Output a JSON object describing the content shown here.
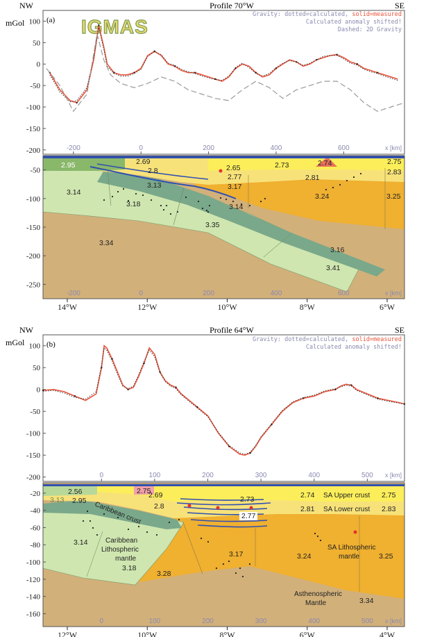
{
  "panels": [
    {
      "label": "(a)",
      "title": "Profile 70°W",
      "left": "NW",
      "right": "SE",
      "unit": "mGol",
      "legend": {
        "line1_a": "Gravity: dotted=calculated, ",
        "line1_b": "solid=measured",
        "line2": "Calculated anomaly shifted!",
        "line3": "Dashed: 2D Gravity"
      },
      "logo": "IGMAS"
    },
    {
      "label": "(b)",
      "title": "Profile 64°W",
      "left": "NW",
      "right": "SE",
      "unit": "mGol",
      "legend": {
        "line1_a": "Gravity: dotted=calculated, ",
        "line1_b": "solid=measured",
        "line2": "Calculated anomaly shifted!"
      }
    }
  ],
  "colors": {
    "measured": "#e8533b",
    "calculated": "#333333",
    "dashed2d": "#999999",
    "mantle_deep": "#d2b07a",
    "lithosphere": "#cfe6b0",
    "slab": "#7aa88a",
    "sa_mantle": "#f0b030",
    "crust": "#f7e27a",
    "upper_crust": "#fbee5a",
    "water": "#3050b0"
  },
  "chart_data": [
    {
      "type": "line",
      "panel": "a-gravity",
      "xlabel": "x [km]",
      "ylabel": "mGol",
      "xlim": [
        -290,
        780
      ],
      "ylim": [
        -210,
        125
      ],
      "x_ticks": [
        -200,
        0,
        200,
        400,
        600
      ],
      "y_ticks": [
        100,
        50,
        0,
        -50,
        -100,
        -150,
        -200
      ],
      "series": [
        {
          "name": "solid=measured",
          "style": "solid",
          "x": [
            -270,
            -240,
            -210,
            -190,
            -160,
            -140,
            -125,
            -110,
            -100,
            -80,
            -60,
            -40,
            -20,
            0,
            20,
            40,
            60,
            80,
            100,
            120,
            140,
            160,
            180,
            200,
            220,
            240,
            260,
            280,
            300,
            320,
            340,
            360,
            380,
            400,
            420,
            440,
            460,
            480,
            500,
            520,
            540,
            560,
            580,
            600,
            620,
            640,
            660,
            680,
            700,
            720,
            760
          ],
          "y": [
            -20,
            -60,
            -85,
            -90,
            -60,
            10,
            90,
            40,
            0,
            -20,
            -25,
            -25,
            -20,
            -10,
            20,
            30,
            20,
            0,
            -5,
            -15,
            -20,
            -20,
            -25,
            -30,
            -35,
            -40,
            -30,
            -10,
            0,
            -5,
            -20,
            -30,
            -25,
            -10,
            0,
            10,
            5,
            -5,
            0,
            10,
            15,
            20,
            22,
            15,
            5,
            0,
            -10,
            -15,
            -20,
            -25,
            -35
          ]
        },
        {
          "name": "dotted=calculated",
          "style": "dotted",
          "x": [
            -270,
            -240,
            -210,
            -190,
            -160,
            -140,
            -125,
            -110,
            -100,
            -80,
            -60,
            -40,
            -20,
            0,
            20,
            40,
            60,
            80,
            100,
            120,
            140,
            160,
            180,
            200,
            220,
            240,
            260,
            280,
            300,
            320,
            340,
            360,
            380,
            400,
            420,
            440,
            460,
            480,
            500,
            520,
            540,
            560,
            580,
            600,
            620,
            640,
            660,
            680,
            700,
            720,
            760
          ],
          "y": [
            -25,
            -65,
            -88,
            -85,
            -55,
            15,
            85,
            35,
            -5,
            -22,
            -28,
            -28,
            -22,
            -12,
            18,
            28,
            22,
            2,
            -3,
            -12,
            -18,
            -22,
            -28,
            -32,
            -36,
            -38,
            -28,
            -8,
            2,
            -8,
            -22,
            -28,
            -22,
            -8,
            2,
            8,
            5,
            -3,
            2,
            10,
            18,
            20,
            20,
            12,
            2,
            -2,
            -12,
            -18,
            -22,
            -28,
            -38
          ]
        },
        {
          "name": "Dashed: 2D Gravity",
          "style": "dashed",
          "x": [
            -280,
            -240,
            -200,
            -160,
            -130,
            -110,
            -90,
            -60,
            -20,
            20,
            60,
            100,
            140,
            180,
            220,
            260,
            300,
            340,
            380,
            420,
            460,
            500,
            540,
            580,
            620,
            660,
            700,
            740,
            780
          ],
          "y": [
            -10,
            -50,
            -110,
            -70,
            70,
            10,
            -25,
            -45,
            -55,
            -45,
            -30,
            -40,
            -60,
            -70,
            -80,
            -85,
            -60,
            -40,
            -55,
            -80,
            -60,
            -50,
            -40,
            -40,
            -60,
            -90,
            -110,
            -100,
            -90
          ]
        }
      ]
    },
    {
      "type": "table",
      "panel": "a-model",
      "xlabel": "x [km]",
      "x_ticks": [
        -200,
        0,
        200,
        400,
        600
      ],
      "depth_ticks": [
        -50,
        -100,
        -150,
        -200,
        -250
      ],
      "longitudes": [
        "14°W",
        "12°W",
        "10°W",
        "8°W",
        "6°W"
      ],
      "densities": [
        "2.95",
        "2.69",
        "2.8",
        "2.65",
        "2.73",
        "2.74",
        "2.75",
        "2.77",
        "2.83",
        "2.81",
        "3.13",
        "3.17",
        "3.14",
        "3.18",
        "3.24",
        "3.25",
        "3.14",
        "3.35",
        "3.34",
        "3.16",
        "3.41"
      ]
    },
    {
      "type": "line",
      "panel": "b-gravity",
      "xlabel": "x [km]",
      "ylabel": "mGol",
      "xlim": [
        -110,
        570
      ],
      "ylim": [
        -210,
        125
      ],
      "x_ticks": [
        0,
        100,
        200,
        300,
        400,
        500
      ],
      "y_ticks": [
        100,
        50,
        0,
        -50,
        -100,
        -150,
        -200
      ],
      "series": [
        {
          "name": "solid=measured",
          "style": "solid",
          "x": [
            -110,
            -90,
            -70,
            -50,
            -30,
            -10,
            0,
            5,
            10,
            20,
            30,
            40,
            50,
            60,
            70,
            80,
            90,
            100,
            110,
            120,
            130,
            140,
            150,
            160,
            180,
            200,
            220,
            240,
            260,
            270,
            280,
            290,
            300,
            320,
            340,
            360,
            380,
            400,
            420,
            440,
            450,
            460,
            470,
            480,
            500,
            520,
            540,
            560,
            570
          ],
          "y": [
            -2,
            0,
            -5,
            -15,
            -25,
            -10,
            50,
            100,
            95,
            70,
            40,
            10,
            0,
            5,
            30,
            60,
            95,
            80,
            40,
            20,
            10,
            5,
            -10,
            -20,
            -40,
            -60,
            -100,
            -130,
            -148,
            -150,
            -145,
            -130,
            -110,
            -80,
            -50,
            -30,
            -20,
            -15,
            -5,
            0,
            8,
            12,
            10,
            0,
            -10,
            -20,
            -25,
            -30,
            -33
          ]
        },
        {
          "name": "dotted=calculated",
          "style": "dotted",
          "x": [
            -110,
            -90,
            -70,
            -50,
            -30,
            -10,
            0,
            5,
            10,
            20,
            30,
            40,
            50,
            60,
            70,
            80,
            90,
            100,
            110,
            120,
            130,
            140,
            150,
            160,
            180,
            200,
            220,
            240,
            260,
            270,
            280,
            290,
            300,
            320,
            340,
            360,
            380,
            400,
            420,
            440,
            450,
            460,
            470,
            480,
            500,
            520,
            540,
            560,
            570
          ],
          "y": [
            -4,
            -2,
            -8,
            -18,
            -22,
            -5,
            55,
            95,
            90,
            65,
            35,
            8,
            2,
            8,
            34,
            64,
            90,
            75,
            38,
            18,
            8,
            2,
            -12,
            -22,
            -42,
            -62,
            -98,
            -128,
            -145,
            -148,
            -143,
            -128,
            -108,
            -78,
            -48,
            -28,
            -18,
            -13,
            -3,
            2,
            6,
            10,
            8,
            -2,
            -12,
            -22,
            -27,
            -31,
            -34
          ]
        }
      ]
    },
    {
      "type": "table",
      "panel": "b-model",
      "xlabel": "x [km]",
      "x_ticks": [
        0,
        100,
        200,
        300,
        400,
        500
      ],
      "depth_ticks": [
        -20,
        -40,
        -60,
        -80,
        -100,
        -120,
        -140,
        -160
      ],
      "longitudes": [
        "12°W",
        "10°W",
        "8°W",
        "6°W",
        "4°W"
      ],
      "densities": [
        "2.56",
        "2.75",
        "2.95",
        "2.69",
        "2.8",
        "2.73",
        "2.77",
        "2.74",
        "2.75",
        "2.81",
        "2.83",
        "3.13",
        "3.14",
        "3.18",
        "3.17",
        "3.28",
        "3.24",
        "3.25",
        "3.34"
      ],
      "annotations": [
        "Caribbean crust",
        "Caribbean",
        "Lithospheric",
        "mantle",
        "SA Upper crust",
        "SA Lower crust",
        "SA Lithospheric",
        "mantle",
        "Asthenospheric",
        "Mantle"
      ]
    }
  ]
}
